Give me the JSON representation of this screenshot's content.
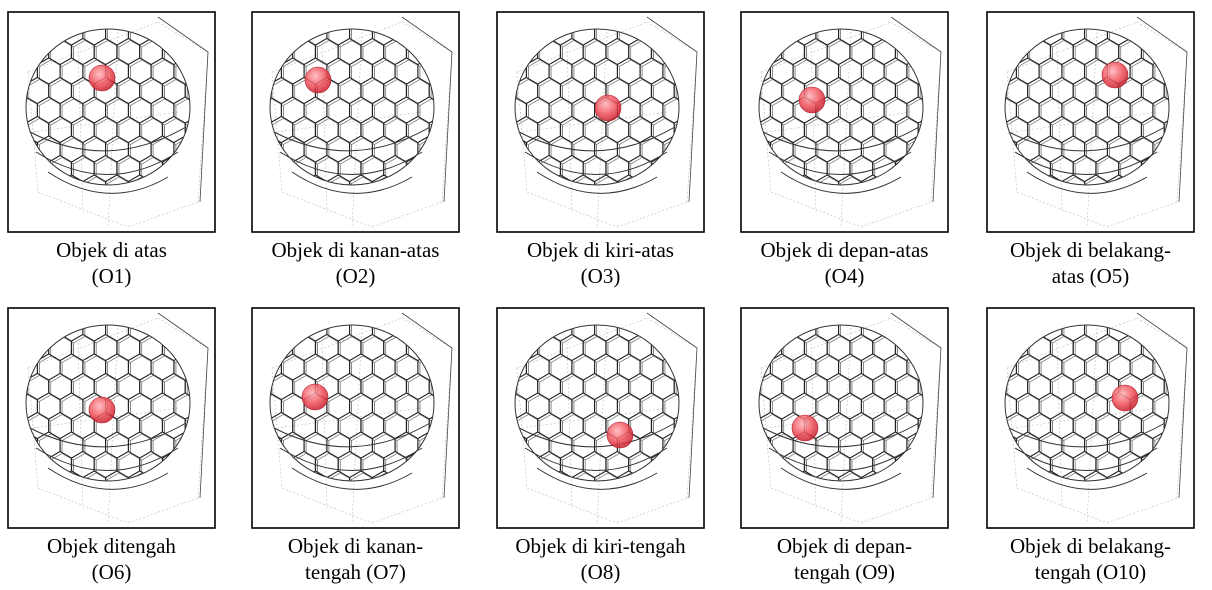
{
  "figure": {
    "panels": [
      {
        "caption": [
          "Objek di atas",
          "(O1)"
        ]
      },
      {
        "caption": [
          "Objek di kanan-atas",
          "(O2)"
        ]
      },
      {
        "caption": [
          "Objek di kiri-atas",
          "(O3)"
        ]
      },
      {
        "caption": [
          "Objek di depan-atas",
          "(O4)"
        ]
      },
      {
        "caption": [
          "Objek di belakang-",
          "atas (O5)"
        ]
      },
      {
        "caption": [
          "Objek ditengah",
          "(O6)"
        ]
      },
      {
        "caption": [
          "Objek di kanan-",
          "tengah (O7)"
        ]
      },
      {
        "caption": [
          "Objek di kiri-tengah",
          "(O8)"
        ]
      },
      {
        "caption": [
          "Objek di depan-",
          "tengah (O9)"
        ]
      },
      {
        "caption": [
          "Objek di belakang-",
          "tengah (O10)"
        ]
      }
    ]
  }
}
